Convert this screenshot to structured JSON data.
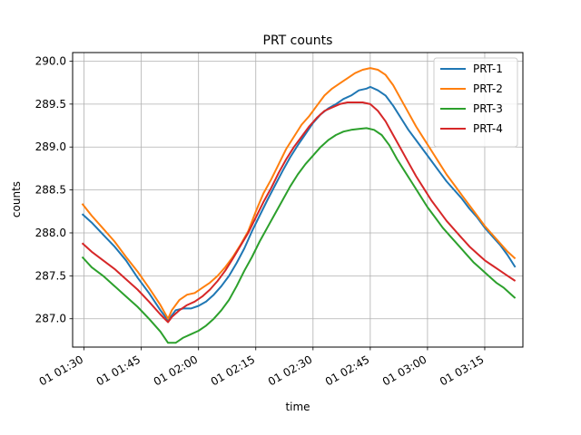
{
  "chart_data": {
    "type": "line",
    "title": "PRT counts",
    "xlabel": "time",
    "ylabel": "counts",
    "x_unit": "minutes",
    "xlim": [
      87,
      205
    ],
    "ylim": [
      286.67,
      290.1
    ],
    "grid": true,
    "legend_placement": "top-right",
    "x_ticks": [
      {
        "value": 90,
        "label": "01 01:30"
      },
      {
        "value": 105,
        "label": "01 01:45"
      },
      {
        "value": 120,
        "label": "01 02:00"
      },
      {
        "value": 135,
        "label": "01 02:15"
      },
      {
        "value": 150,
        "label": "01 02:30"
      },
      {
        "value": 165,
        "label": "01 02:45"
      },
      {
        "value": 180,
        "label": "01 03:00"
      },
      {
        "value": 195,
        "label": "01 03:15"
      }
    ],
    "y_ticks": [
      {
        "value": 287.0,
        "label": "287.0"
      },
      {
        "value": 287.5,
        "label": "287.5"
      },
      {
        "value": 288.0,
        "label": "288.0"
      },
      {
        "value": 288.5,
        "label": "288.5"
      },
      {
        "value": 289.0,
        "label": "289.0"
      },
      {
        "value": 289.5,
        "label": "289.5"
      },
      {
        "value": 290.0,
        "label": "290.0"
      }
    ],
    "series": [
      {
        "name": "PRT-1",
        "color": "#1f77b4",
        "points": [
          [
            89.5,
            288.22
          ],
          [
            92,
            288.12
          ],
          [
            95,
            287.98
          ],
          [
            98,
            287.84
          ],
          [
            101,
            287.68
          ],
          [
            104,
            287.48
          ],
          [
            107,
            287.3
          ],
          [
            110,
            287.1
          ],
          [
            112,
            286.98
          ],
          [
            114,
            287.1
          ],
          [
            116,
            287.12
          ],
          [
            118,
            287.12
          ],
          [
            120,
            287.15
          ],
          [
            122,
            287.2
          ],
          [
            124,
            287.28
          ],
          [
            126,
            287.38
          ],
          [
            128,
            287.5
          ],
          [
            130,
            287.65
          ],
          [
            132,
            287.82
          ],
          [
            134,
            288.02
          ],
          [
            136,
            288.2
          ],
          [
            138,
            288.38
          ],
          [
            140,
            288.55
          ],
          [
            142,
            288.72
          ],
          [
            144,
            288.88
          ],
          [
            146,
            289.02
          ],
          [
            148,
            289.15
          ],
          [
            150,
            289.28
          ],
          [
            152,
            289.38
          ],
          [
            154,
            289.45
          ],
          [
            156,
            289.5
          ],
          [
            158,
            289.56
          ],
          [
            160,
            289.6
          ],
          [
            162,
            289.66
          ],
          [
            164,
            289.68
          ],
          [
            165,
            289.7
          ],
          [
            167,
            289.66
          ],
          [
            169,
            289.6
          ],
          [
            171,
            289.48
          ],
          [
            173,
            289.34
          ],
          [
            175,
            289.2
          ],
          [
            177,
            289.08
          ],
          [
            179,
            288.96
          ],
          [
            181,
            288.84
          ],
          [
            183,
            288.72
          ],
          [
            185,
            288.6
          ],
          [
            187,
            288.5
          ],
          [
            189,
            288.4
          ],
          [
            191,
            288.28
          ],
          [
            193,
            288.18
          ],
          [
            195,
            288.06
          ],
          [
            197,
            287.96
          ],
          [
            199,
            287.86
          ],
          [
            201,
            287.74
          ],
          [
            203,
            287.6
          ]
        ]
      },
      {
        "name": "PRT-2",
        "color": "#ff7f0e",
        "points": [
          [
            89.5,
            288.34
          ],
          [
            92,
            288.2
          ],
          [
            95,
            288.05
          ],
          [
            98,
            287.9
          ],
          [
            101,
            287.72
          ],
          [
            104,
            287.55
          ],
          [
            107,
            287.36
          ],
          [
            110,
            287.16
          ],
          [
            112,
            287.0
          ],
          [
            113,
            287.1
          ],
          [
            115,
            287.22
          ],
          [
            117,
            287.28
          ],
          [
            119,
            287.3
          ],
          [
            121,
            287.36
          ],
          [
            123,
            287.42
          ],
          [
            125,
            287.5
          ],
          [
            127,
            287.6
          ],
          [
            129,
            287.72
          ],
          [
            131,
            287.86
          ],
          [
            133,
            288.02
          ],
          [
            135,
            288.25
          ],
          [
            137,
            288.46
          ],
          [
            139,
            288.62
          ],
          [
            141,
            288.8
          ],
          [
            143,
            288.98
          ],
          [
            145,
            289.12
          ],
          [
            147,
            289.26
          ],
          [
            149,
            289.36
          ],
          [
            151,
            289.48
          ],
          [
            153,
            289.6
          ],
          [
            155,
            289.68
          ],
          [
            157,
            289.74
          ],
          [
            159,
            289.8
          ],
          [
            161,
            289.86
          ],
          [
            163,
            289.9
          ],
          [
            165,
            289.92
          ],
          [
            167,
            289.9
          ],
          [
            169,
            289.84
          ],
          [
            171,
            289.72
          ],
          [
            173,
            289.56
          ],
          [
            175,
            289.4
          ],
          [
            177,
            289.24
          ],
          [
            179,
            289.1
          ],
          [
            181,
            288.96
          ],
          [
            183,
            288.82
          ],
          [
            185,
            288.68
          ],
          [
            187,
            288.56
          ],
          [
            189,
            288.44
          ],
          [
            191,
            288.32
          ],
          [
            193,
            288.2
          ],
          [
            195,
            288.08
          ],
          [
            197,
            287.98
          ],
          [
            199,
            287.88
          ],
          [
            201,
            287.78
          ],
          [
            203,
            287.7
          ]
        ]
      },
      {
        "name": "PRT-3",
        "color": "#2ca02c",
        "points": [
          [
            89.5,
            287.72
          ],
          [
            92,
            287.6
          ],
          [
            95,
            287.5
          ],
          [
            98,
            287.38
          ],
          [
            101,
            287.26
          ],
          [
            104,
            287.14
          ],
          [
            107,
            287.0
          ],
          [
            110,
            286.85
          ],
          [
            112,
            286.72
          ],
          [
            114,
            286.72
          ],
          [
            116,
            286.78
          ],
          [
            118,
            286.82
          ],
          [
            120,
            286.86
          ],
          [
            122,
            286.92
          ],
          [
            124,
            287.0
          ],
          [
            126,
            287.1
          ],
          [
            128,
            287.22
          ],
          [
            130,
            287.38
          ],
          [
            132,
            287.56
          ],
          [
            134,
            287.72
          ],
          [
            136,
            287.9
          ],
          [
            138,
            288.06
          ],
          [
            140,
            288.22
          ],
          [
            142,
            288.38
          ],
          [
            144,
            288.54
          ],
          [
            146,
            288.68
          ],
          [
            148,
            288.8
          ],
          [
            150,
            288.9
          ],
          [
            152,
            289.0
          ],
          [
            154,
            289.08
          ],
          [
            156,
            289.14
          ],
          [
            158,
            289.18
          ],
          [
            160,
            289.2
          ],
          [
            162,
            289.21
          ],
          [
            164,
            289.22
          ],
          [
            166,
            289.2
          ],
          [
            168,
            289.14
          ],
          [
            170,
            289.02
          ],
          [
            172,
            288.86
          ],
          [
            174,
            288.72
          ],
          [
            176,
            288.58
          ],
          [
            178,
            288.44
          ],
          [
            180,
            288.3
          ],
          [
            182,
            288.18
          ],
          [
            184,
            288.06
          ],
          [
            186,
            287.96
          ],
          [
            188,
            287.86
          ],
          [
            190,
            287.76
          ],
          [
            192,
            287.66
          ],
          [
            194,
            287.58
          ],
          [
            196,
            287.5
          ],
          [
            198,
            287.42
          ],
          [
            200,
            287.36
          ],
          [
            202,
            287.28
          ],
          [
            203,
            287.24
          ]
        ]
      },
      {
        "name": "PRT-4",
        "color": "#d62728",
        "points": [
          [
            89.5,
            287.88
          ],
          [
            92,
            287.78
          ],
          [
            95,
            287.68
          ],
          [
            98,
            287.58
          ],
          [
            101,
            287.46
          ],
          [
            104,
            287.34
          ],
          [
            107,
            287.2
          ],
          [
            110,
            287.05
          ],
          [
            112,
            286.96
          ],
          [
            113,
            287.02
          ],
          [
            115,
            287.1
          ],
          [
            117,
            287.16
          ],
          [
            119,
            287.2
          ],
          [
            121,
            287.26
          ],
          [
            123,
            287.34
          ],
          [
            125,
            287.44
          ],
          [
            127,
            287.56
          ],
          [
            129,
            287.7
          ],
          [
            131,
            287.85
          ],
          [
            133,
            288.0
          ],
          [
            135,
            288.18
          ],
          [
            137,
            288.36
          ],
          [
            139,
            288.52
          ],
          [
            141,
            288.7
          ],
          [
            143,
            288.86
          ],
          [
            145,
            289.0
          ],
          [
            147,
            289.12
          ],
          [
            149,
            289.24
          ],
          [
            151,
            289.34
          ],
          [
            153,
            289.42
          ],
          [
            155,
            289.46
          ],
          [
            157,
            289.5
          ],
          [
            159,
            289.52
          ],
          [
            161,
            289.52
          ],
          [
            163,
            289.52
          ],
          [
            165,
            289.5
          ],
          [
            167,
            289.42
          ],
          [
            169,
            289.3
          ],
          [
            171,
            289.14
          ],
          [
            173,
            288.98
          ],
          [
            175,
            288.82
          ],
          [
            177,
            288.66
          ],
          [
            179,
            288.52
          ],
          [
            181,
            288.38
          ],
          [
            183,
            288.26
          ],
          [
            185,
            288.14
          ],
          [
            187,
            288.04
          ],
          [
            189,
            287.94
          ],
          [
            191,
            287.84
          ],
          [
            193,
            287.76
          ],
          [
            195,
            287.68
          ],
          [
            197,
            287.62
          ],
          [
            199,
            287.56
          ],
          [
            201,
            287.5
          ],
          [
            203,
            287.44
          ]
        ]
      }
    ]
  }
}
